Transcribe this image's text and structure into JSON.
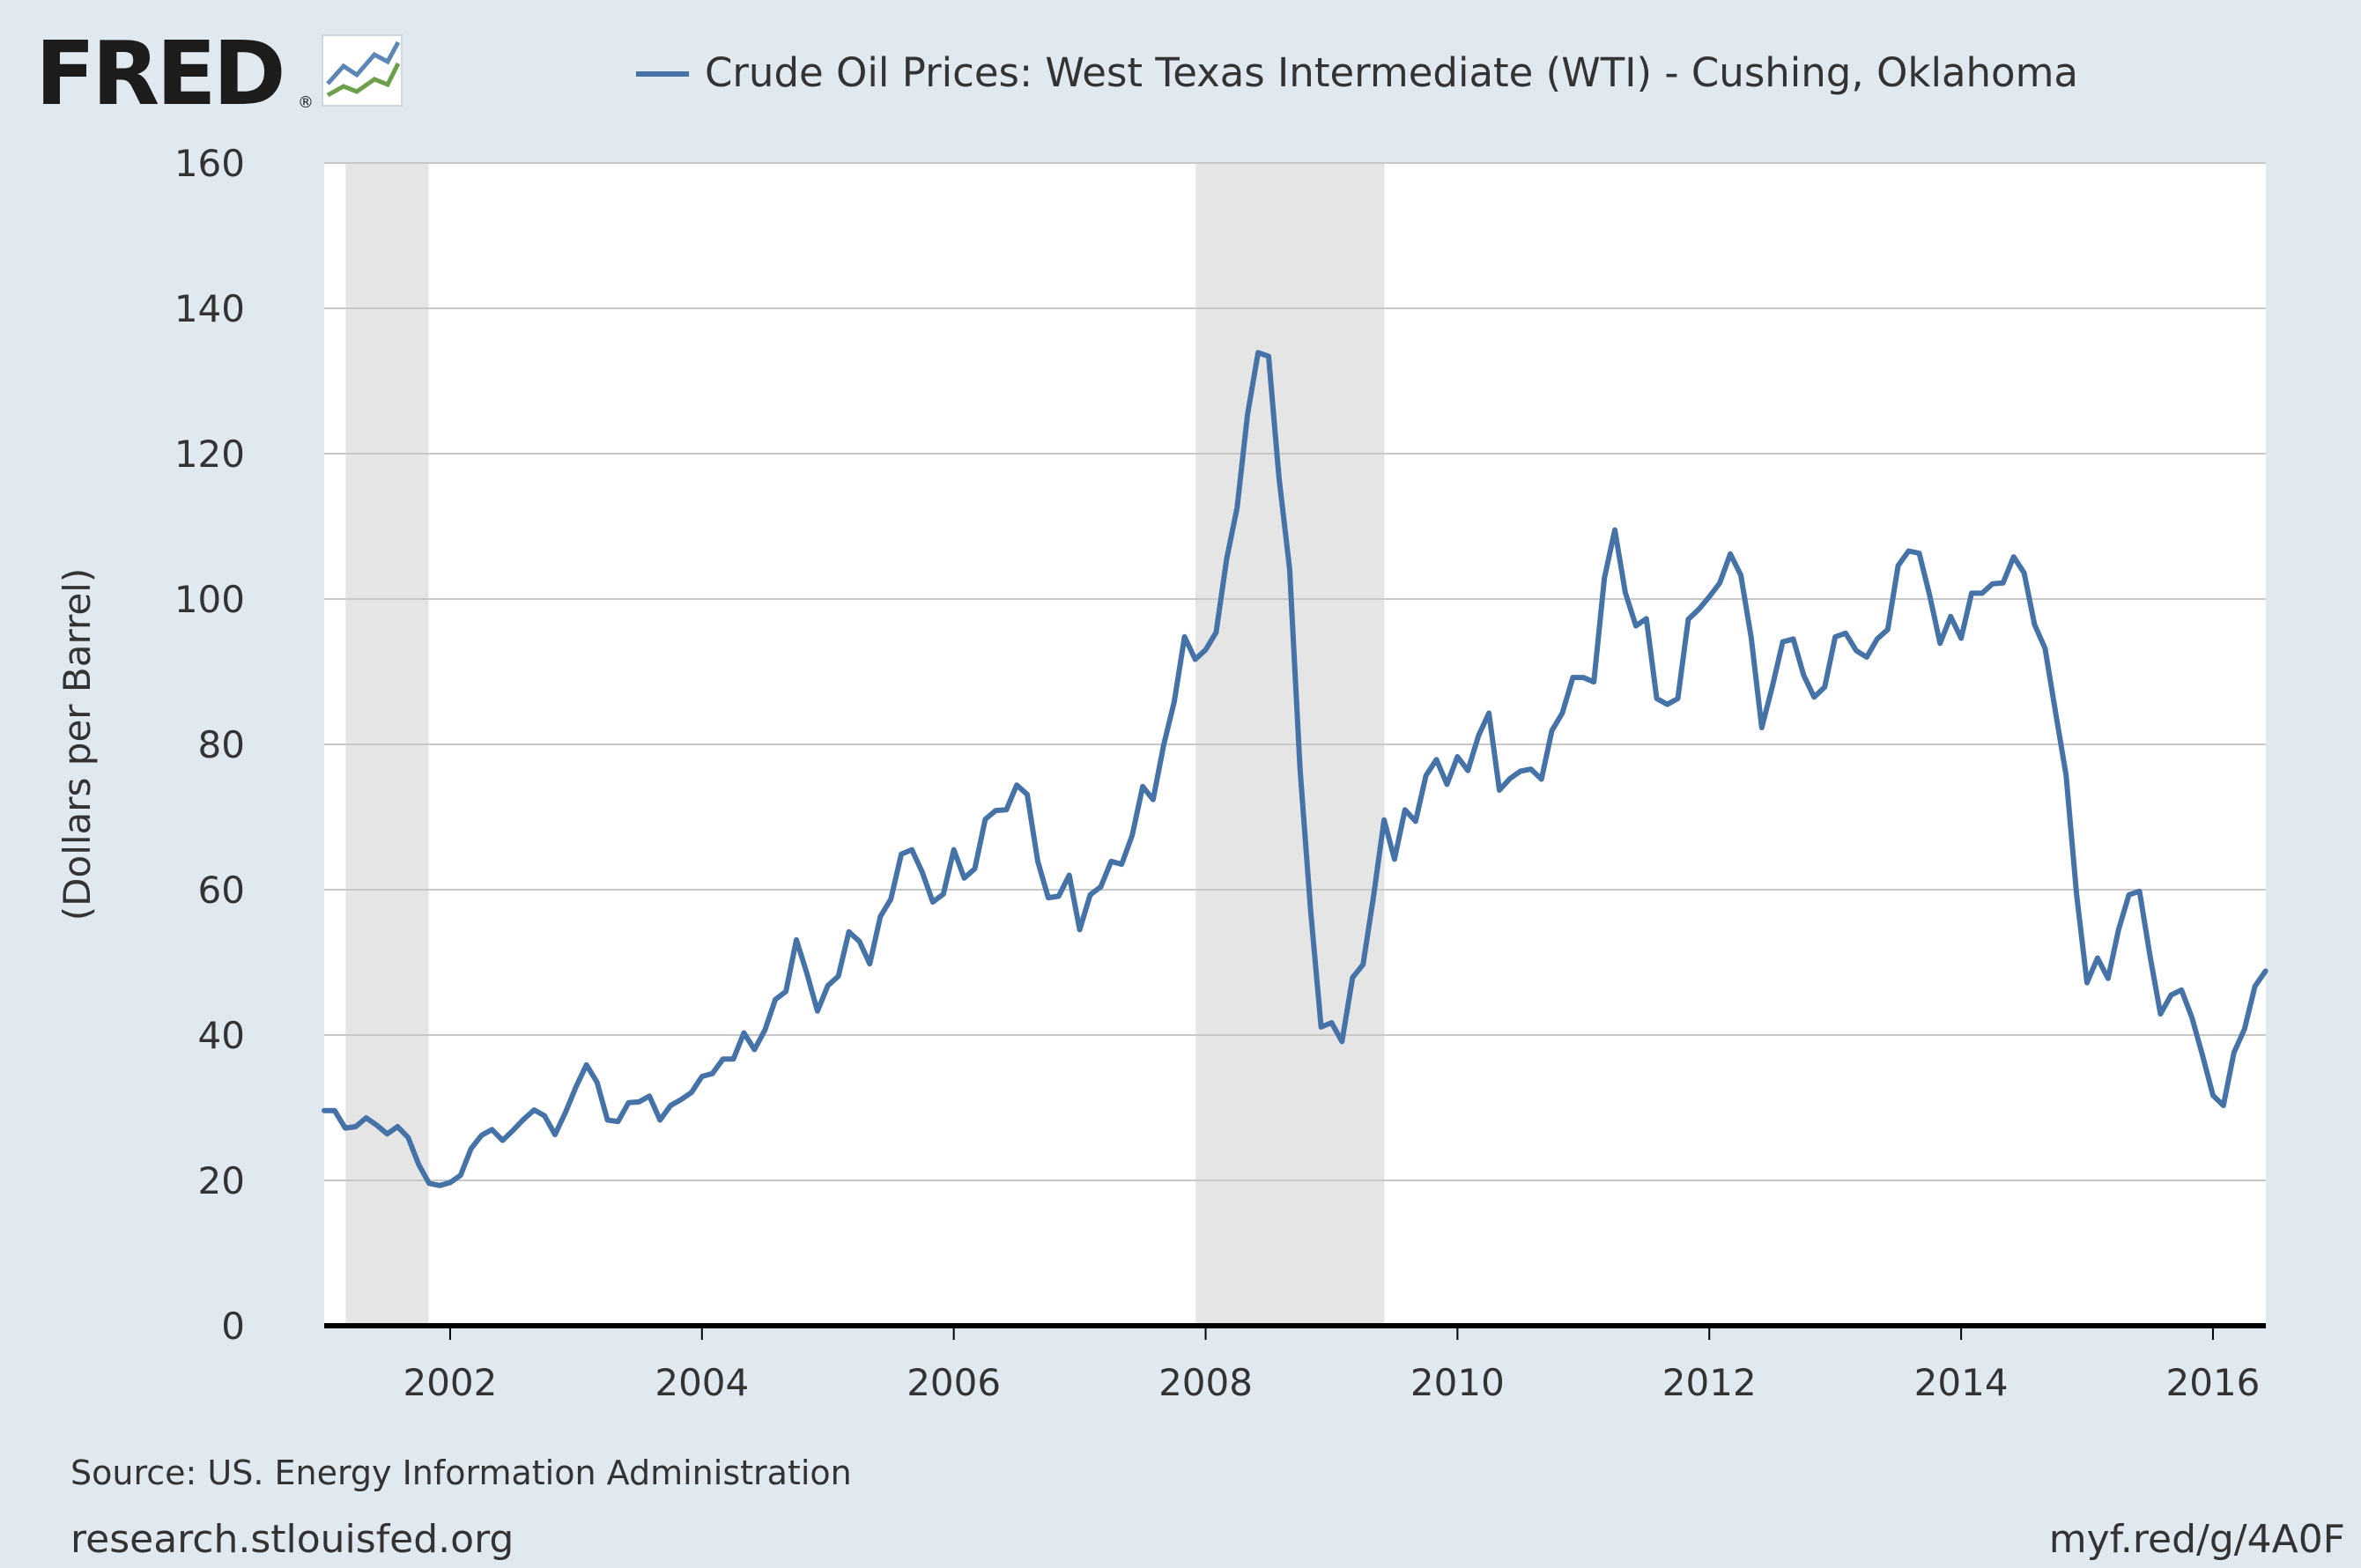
{
  "brand": {
    "logo_text": "FRED",
    "logo_mark": "®",
    "logo_icon": "chart-line-icon",
    "colors": {
      "logo_text": "#1c1c1c",
      "icon_blue": "#5b86b5",
      "icon_green": "#6e9f4a"
    }
  },
  "footer": {
    "source": "Source: US. Energy Information Administration",
    "site": "research.stlouisfed.org",
    "short_link": "myf.red/g/4A0F"
  },
  "chart_data": {
    "type": "line",
    "title": "",
    "xlabel": "",
    "ylabel": "(Dollars per Barrel)",
    "legend_position": "top-center",
    "grid": true,
    "ylim": [
      0,
      160
    ],
    "xlim": [
      2001.0,
      2016.42
    ],
    "y_ticks": [
      0,
      20,
      40,
      60,
      80,
      100,
      120,
      140,
      160
    ],
    "x_ticks": [
      2002,
      2004,
      2006,
      2008,
      2010,
      2012,
      2014,
      2016
    ],
    "x_tick_labels": [
      "2002",
      "2004",
      "2006",
      "2008",
      "2010",
      "2012",
      "2014",
      "2016"
    ],
    "y_tick_labels": [
      "0",
      "20",
      "40",
      "60",
      "80",
      "100",
      "120",
      "140",
      "160"
    ],
    "recessions": [
      {
        "start": 2001.17,
        "end": 2001.83
      },
      {
        "start": 2007.92,
        "end": 2009.42
      }
    ],
    "colors": {
      "line": "#4572a7",
      "recession": "#e5e5e5",
      "plot_bg": "#ffffff",
      "page_bg": "#e1e9f0",
      "grid": "#c8c8c8",
      "axis": "#000000",
      "text": "#333333"
    },
    "series": [
      {
        "name": "Crude Oil Prices: West Texas Intermediate (WTI) - Cushing, Oklahoma",
        "x": [
          2001.0,
          2001.083,
          2001.167,
          2001.25,
          2001.333,
          2001.417,
          2001.5,
          2001.583,
          2001.667,
          2001.75,
          2001.833,
          2001.917,
          2002.0,
          2002.083,
          2002.167,
          2002.25,
          2002.333,
          2002.417,
          2002.5,
          2002.583,
          2002.667,
          2002.75,
          2002.833,
          2002.917,
          2003.0,
          2003.083,
          2003.167,
          2003.25,
          2003.333,
          2003.417,
          2003.5,
          2003.583,
          2003.667,
          2003.75,
          2003.833,
          2003.917,
          2004.0,
          2004.083,
          2004.167,
          2004.25,
          2004.333,
          2004.417,
          2004.5,
          2004.583,
          2004.667,
          2004.75,
          2004.833,
          2004.917,
          2005.0,
          2005.083,
          2005.167,
          2005.25,
          2005.333,
          2005.417,
          2005.5,
          2005.583,
          2005.667,
          2005.75,
          2005.833,
          2005.917,
          2006.0,
          2006.083,
          2006.167,
          2006.25,
          2006.333,
          2006.417,
          2006.5,
          2006.583,
          2006.667,
          2006.75,
          2006.833,
          2006.917,
          2007.0,
          2007.083,
          2007.167,
          2007.25,
          2007.333,
          2007.417,
          2007.5,
          2007.583,
          2007.667,
          2007.75,
          2007.833,
          2007.917,
          2008.0,
          2008.083,
          2008.167,
          2008.25,
          2008.333,
          2008.417,
          2008.5,
          2008.583,
          2008.667,
          2008.75,
          2008.833,
          2008.917,
          2009.0,
          2009.083,
          2009.167,
          2009.25,
          2009.333,
          2009.417,
          2009.5,
          2009.583,
          2009.667,
          2009.75,
          2009.833,
          2009.917,
          2010.0,
          2010.083,
          2010.167,
          2010.25,
          2010.333,
          2010.417,
          2010.5,
          2010.583,
          2010.667,
          2010.75,
          2010.833,
          2010.917,
          2011.0,
          2011.083,
          2011.167,
          2011.25,
          2011.333,
          2011.417,
          2011.5,
          2011.583,
          2011.667,
          2011.75,
          2011.833,
          2011.917,
          2012.0,
          2012.083,
          2012.167,
          2012.25,
          2012.333,
          2012.417,
          2012.5,
          2012.583,
          2012.667,
          2012.75,
          2012.833,
          2012.917,
          2013.0,
          2013.083,
          2013.167,
          2013.25,
          2013.333,
          2013.417,
          2013.5,
          2013.583,
          2013.667,
          2013.75,
          2013.833,
          2013.917,
          2014.0,
          2014.083,
          2014.167,
          2014.25,
          2014.333,
          2014.417,
          2014.5,
          2014.583,
          2014.667,
          2014.75,
          2014.833,
          2014.917,
          2015.0,
          2015.083,
          2015.167,
          2015.25,
          2015.333,
          2015.417,
          2015.5,
          2015.583,
          2015.667,
          2015.75,
          2015.833,
          2015.917,
          2016.0,
          2016.083,
          2016.167,
          2016.25,
          2016.333,
          2016.417
        ],
        "values": [
          29.6,
          29.6,
          27.2,
          27.4,
          28.6,
          27.6,
          26.4,
          27.4,
          25.9,
          22.2,
          19.6,
          19.3,
          19.7,
          20.7,
          24.4,
          26.2,
          27.0,
          25.5,
          26.9,
          28.4,
          29.7,
          28.9,
          26.3,
          29.4,
          32.9,
          35.9,
          33.5,
          28.3,
          28.1,
          30.7,
          30.8,
          31.6,
          28.3,
          30.3,
          31.1,
          32.1,
          34.3,
          34.7,
          36.7,
          36.7,
          40.3,
          38.0,
          40.7,
          44.9,
          46.0,
          53.1,
          48.5,
          43.3,
          46.8,
          48.1,
          54.2,
          52.9,
          49.8,
          56.3,
          58.7,
          64.9,
          65.5,
          62.4,
          58.3,
          59.4,
          65.5,
          61.6,
          62.9,
          69.7,
          70.9,
          71.0,
          74.4,
          73.1,
          63.9,
          58.9,
          59.1,
          62.0,
          54.5,
          59.3,
          60.4,
          63.9,
          63.5,
          67.5,
          74.2,
          72.4,
          79.9,
          85.8,
          94.8,
          91.7,
          93.0,
          95.4,
          105.5,
          112.6,
          125.4,
          133.9,
          133.4,
          116.7,
          104.1,
          76.6,
          57.3,
          41.1,
          41.7,
          39.1,
          47.9,
          49.7,
          59.0,
          69.6,
          64.2,
          71.0,
          69.4,
          75.7,
          77.9,
          74.5,
          78.3,
          76.4,
          81.2,
          84.3,
          73.7,
          75.3,
          76.3,
          76.6,
          75.2,
          81.9,
          84.3,
          89.2,
          89.2,
          88.6,
          102.9,
          109.5,
          100.9,
          96.3,
          97.3,
          86.3,
          85.5,
          86.3,
          97.2,
          98.6,
          100.3,
          102.2,
          106.2,
          103.3,
          94.7,
          82.3,
          87.9,
          94.1,
          94.5,
          89.5,
          86.5,
          87.9,
          94.8,
          95.3,
          92.9,
          92.0,
          94.5,
          95.8,
          104.6,
          106.6,
          106.3,
          100.5,
          93.9,
          97.6,
          94.6,
          100.8,
          100.8,
          102.1,
          102.2,
          105.8,
          103.6,
          96.5,
          93.2,
          84.4,
          75.8,
          59.3,
          47.2,
          50.6,
          47.8,
          54.5,
          59.3,
          59.8,
          50.9,
          42.9,
          45.5,
          46.2,
          42.4,
          37.2,
          31.7,
          30.3,
          37.6,
          40.8,
          46.7,
          48.8
        ]
      }
    ]
  }
}
